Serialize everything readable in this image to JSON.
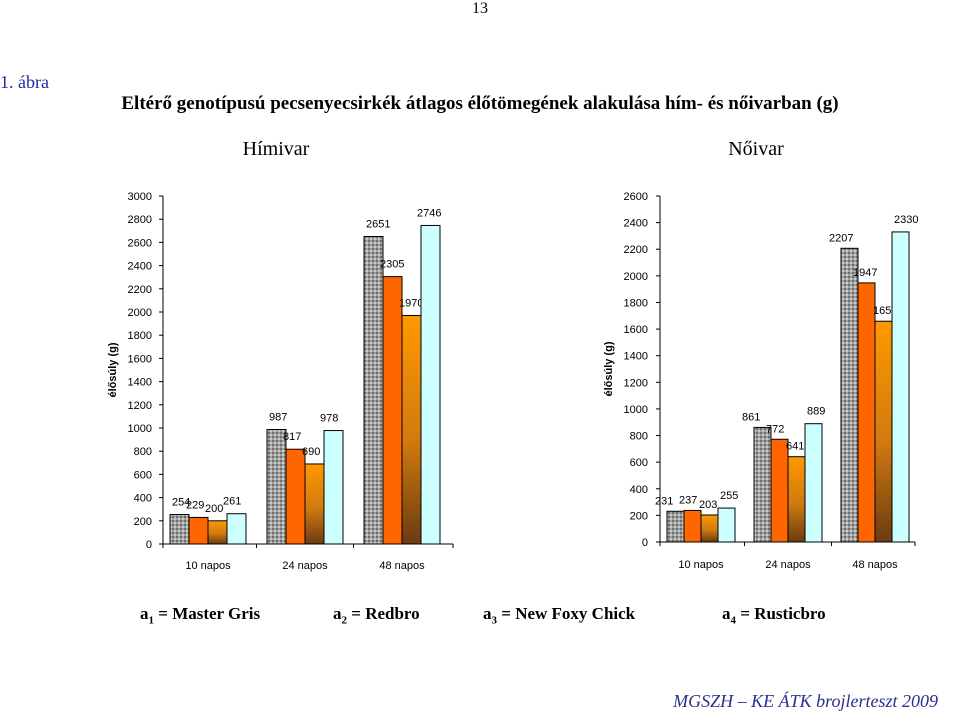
{
  "page_number": "13",
  "figure_label": "1. ábra",
  "figure_title": "Eltérő genotípusú pecsenyecsirkék átlagos élőtömegének alakulása hím- és nőivarban (g)",
  "footer": "MGSZH – KE ÁTK brojlerteszt 2009",
  "legend": [
    {
      "letter": "a",
      "sub": "1",
      "eq": " = ",
      "name": "Master Gris"
    },
    {
      "letter": "a",
      "sub": "2",
      "eq": " = ",
      "name": "Redbro"
    },
    {
      "letter": "a",
      "sub": "3",
      "eq": " = ",
      "name": "New Foxy Chick"
    },
    {
      "letter": "a",
      "sub": "4",
      "eq": " = ",
      "name": "Rusticbro"
    }
  ],
  "colors": {
    "master_gris": "#9a9a9a",
    "redbro": "#ff6600",
    "new_foxy_chick": "#ff9900",
    "rusticbro": "#ccffff"
  },
  "chart_data": [
    {
      "type": "bar",
      "title": "Hímivar",
      "ylabel": "élősúly (g)",
      "ylim": [
        0,
        3000
      ],
      "yticks": [
        0,
        200,
        400,
        600,
        800,
        1000,
        1200,
        1400,
        1600,
        1800,
        2000,
        2200,
        2400,
        2600,
        2800,
        3000
      ],
      "categories": [
        "10 napos",
        "24 napos",
        "48 napos"
      ],
      "series": [
        {
          "values": [
            254,
            987,
            2651
          ]
        },
        {
          "values": [
            229,
            817,
            2305
          ]
        },
        {
          "values": [
            200,
            690,
            1970
          ]
        },
        {
          "values": [
            261,
            978,
            2746
          ]
        }
      ],
      "grid": false
    },
    {
      "type": "bar",
      "title": "Nőivar",
      "ylabel": "élősúly (g)",
      "ylim": [
        0,
        2600
      ],
      "yticks": [
        0,
        200,
        400,
        600,
        800,
        1000,
        1200,
        1400,
        1600,
        1800,
        2000,
        2200,
        2400,
        2600
      ],
      "categories": [
        "10 napos",
        "24 napos",
        "48 napos"
      ],
      "series": [
        {
          "values": [
            231,
            861,
            2207
          ]
        },
        {
          "values": [
            237,
            772,
            1947
          ]
        },
        {
          "values": [
            203,
            641,
            1659
          ]
        },
        {
          "values": [
            255,
            889,
            2330
          ]
        }
      ],
      "grid": false
    }
  ]
}
